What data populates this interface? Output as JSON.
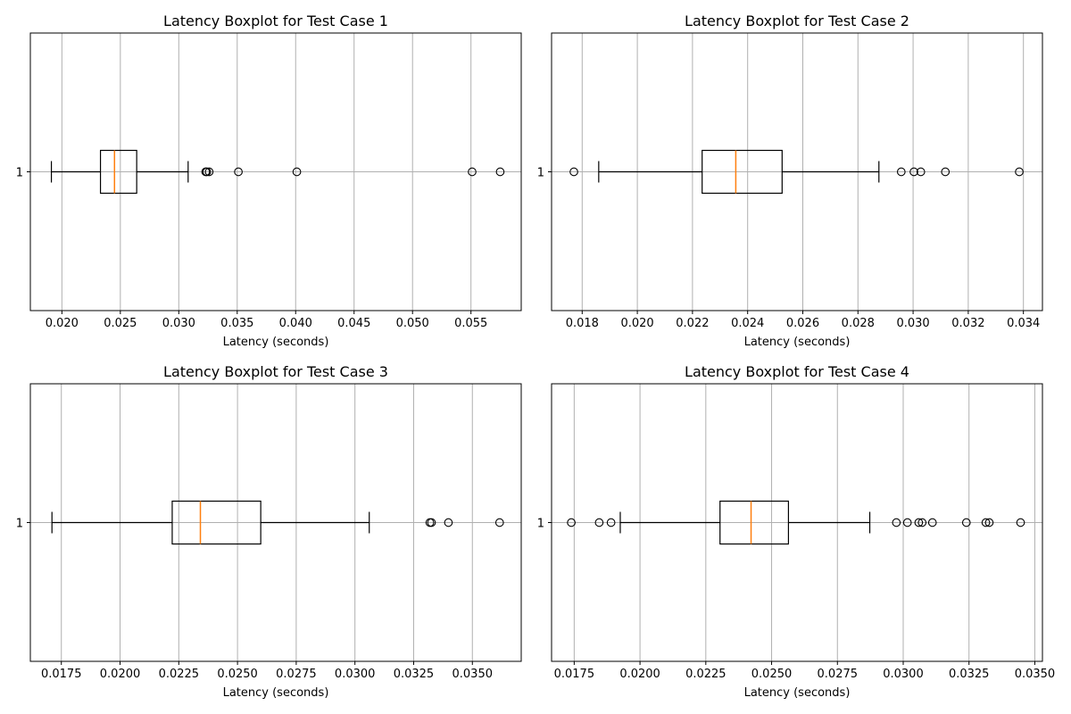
{
  "chart_data": [
    {
      "type": "boxplot",
      "title": "Latency Boxplot for Test Case 1",
      "xlabel": "Latency (seconds)",
      "category": "1",
      "xlim": [
        0.0173,
        0.0593
      ],
      "xticks": [
        "0.020",
        "0.025",
        "0.030",
        "0.035",
        "0.040",
        "0.045",
        "0.050",
        "0.055"
      ],
      "xtick_values": [
        0.02,
        0.025,
        0.03,
        0.035,
        0.04,
        0.045,
        0.05,
        0.055
      ],
      "grid": true,
      "box": {
        "whisker_low": 0.0191,
        "q1": 0.0233,
        "median": 0.0245,
        "q3": 0.0264,
        "whisker_high": 0.0308
      },
      "outliers": [
        0.0323,
        0.0324,
        0.0326,
        0.0351,
        0.0401,
        0.0551,
        0.0575
      ]
    },
    {
      "type": "boxplot",
      "title": "Latency Boxplot for Test Case 2",
      "xlabel": "Latency (seconds)",
      "category": "1",
      "xlim": [
        0.01689,
        0.03469
      ],
      "xticks": [
        "0.018",
        "0.020",
        "0.022",
        "0.024",
        "0.026",
        "0.028",
        "0.030",
        "0.032",
        "0.034"
      ],
      "xtick_values": [
        0.018,
        0.02,
        0.022,
        0.024,
        0.026,
        0.028,
        0.03,
        0.032,
        0.034
      ],
      "grid": true,
      "box": {
        "whisker_low": 0.0186,
        "q1": 0.02235,
        "median": 0.02357,
        "q3": 0.02525,
        "whisker_high": 0.02876
      },
      "outliers": [
        0.0177,
        0.02957,
        0.03003,
        0.03028,
        0.03117,
        0.03385
      ]
    },
    {
      "type": "boxplot",
      "title": "Latency Boxplot for Test Case 3",
      "xlabel": "Latency (seconds)",
      "category": "1",
      "xlim": [
        0.01618,
        0.03708
      ],
      "xticks": [
        "0.0175",
        "0.0200",
        "0.0225",
        "0.0250",
        "0.0275",
        "0.0300",
        "0.0325",
        "0.0350"
      ],
      "xtick_values": [
        0.0175,
        0.02,
        0.0225,
        0.025,
        0.0275,
        0.03,
        0.0325,
        0.035
      ],
      "grid": true,
      "box": {
        "whisker_low": 0.0171,
        "q1": 0.02222,
        "median": 0.02342,
        "q3": 0.02599,
        "whisker_high": 0.03061
      },
      "outliers": [
        0.03319,
        0.03326,
        0.03398,
        0.03616
      ]
    },
    {
      "type": "boxplot",
      "title": "Latency Boxplot for Test Case 4",
      "xlabel": "Latency (seconds)",
      "category": "1",
      "xlim": [
        0.01664,
        0.03529
      ],
      "xticks": [
        "0.0175",
        "0.0200",
        "0.0225",
        "0.0250",
        "0.0275",
        "0.0300",
        "0.0325",
        "0.0350"
      ],
      "xtick_values": [
        0.0175,
        0.02,
        0.0225,
        0.025,
        0.0275,
        0.03,
        0.0325,
        0.035
      ],
      "grid": true,
      "box": {
        "whisker_low": 0.01925,
        "q1": 0.02304,
        "median": 0.02422,
        "q3": 0.02564,
        "whisker_high": 0.02873
      },
      "outliers": [
        0.01739,
        0.01845,
        0.0189,
        0.02974,
        0.03016,
        0.03059,
        0.03072,
        0.03111,
        0.0324,
        0.03314,
        0.03327,
        0.03446
      ]
    }
  ],
  "colors": {
    "median": "#ff7f0e",
    "box": "#000000",
    "grid": "#b0b0b0"
  }
}
